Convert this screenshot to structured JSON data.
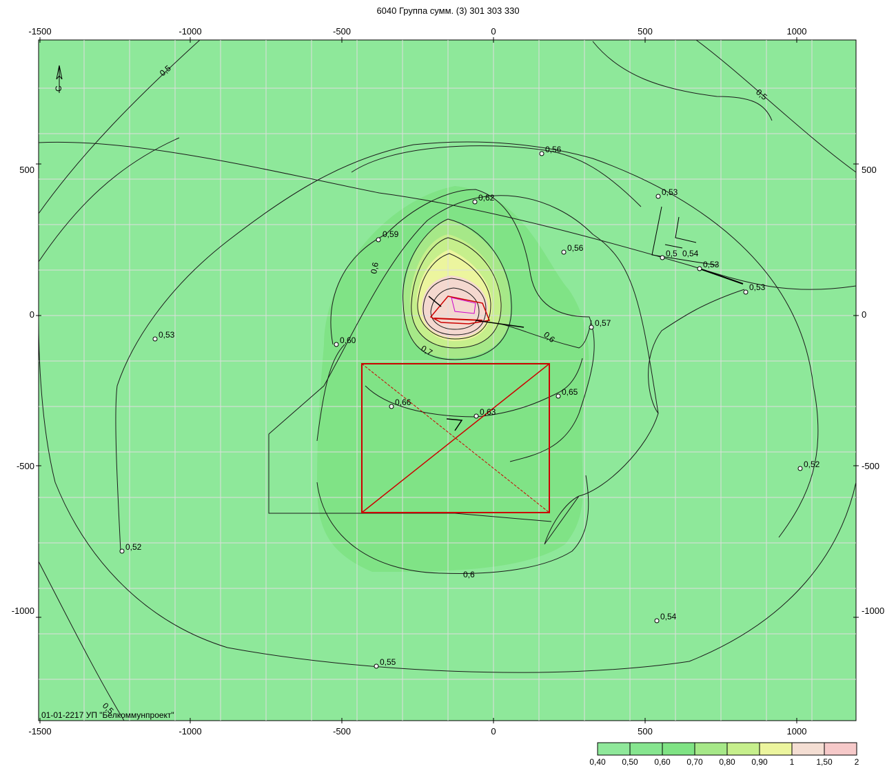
{
  "title": "6040 Группа сумм. (3) 301 303 330",
  "axes": {
    "x_ticks": [
      "-1500",
      "-1000",
      "-500",
      "0",
      "500",
      "1000"
    ],
    "y_ticks": [
      "500",
      "0",
      "-500",
      "-1000"
    ]
  },
  "footer_label": "01-01-2217 УП \"Белкоммунпроект\"",
  "north_arrow_label": "С",
  "contour_labels": [
    {
      "text": "0,5"
    },
    {
      "text": "0,5"
    },
    {
      "text": "0,56"
    },
    {
      "text": "0,53"
    },
    {
      "text": "0,62"
    },
    {
      "text": "0,59"
    },
    {
      "text": "0,56"
    },
    {
      "text": "0,5"
    },
    {
      "text": "0,54"
    },
    {
      "text": "0,53"
    },
    {
      "text": "0,53"
    },
    {
      "text": "0,6"
    },
    {
      "text": "0,53"
    },
    {
      "text": "0,57"
    },
    {
      "text": "0,60"
    },
    {
      "text": "0,6"
    },
    {
      "text": "0,7"
    },
    {
      "text": "0,65"
    },
    {
      "text": "0,66"
    },
    {
      "text": "0,63"
    },
    {
      "text": "0,52"
    },
    {
      "text": "0,52"
    },
    {
      "text": "0,6"
    },
    {
      "text": "0,54"
    },
    {
      "text": "0,55"
    },
    {
      "text": "0,5"
    }
  ],
  "legend": {
    "labels": [
      "0,40",
      "0,50",
      "0,60",
      "0,70",
      "0,80",
      "0,90",
      "1",
      "1,50",
      "2"
    ],
    "colors": [
      "#8fe89a",
      "#86e58f",
      "#7fe384",
      "#a6e888",
      "#c6ef8c",
      "#ecf59e",
      "#f4ded3",
      "#f6c9c9"
    ]
  },
  "colors": {
    "background_zone": "#8ee89a",
    "zone_060": "#80e386",
    "zone_070": "#a6e888",
    "zone_080": "#c6ef8c",
    "zone_090": "#ecf59e",
    "zone_100": "#f4d8cf",
    "site_outline": "#cc0000",
    "grid": "#dedede"
  }
}
